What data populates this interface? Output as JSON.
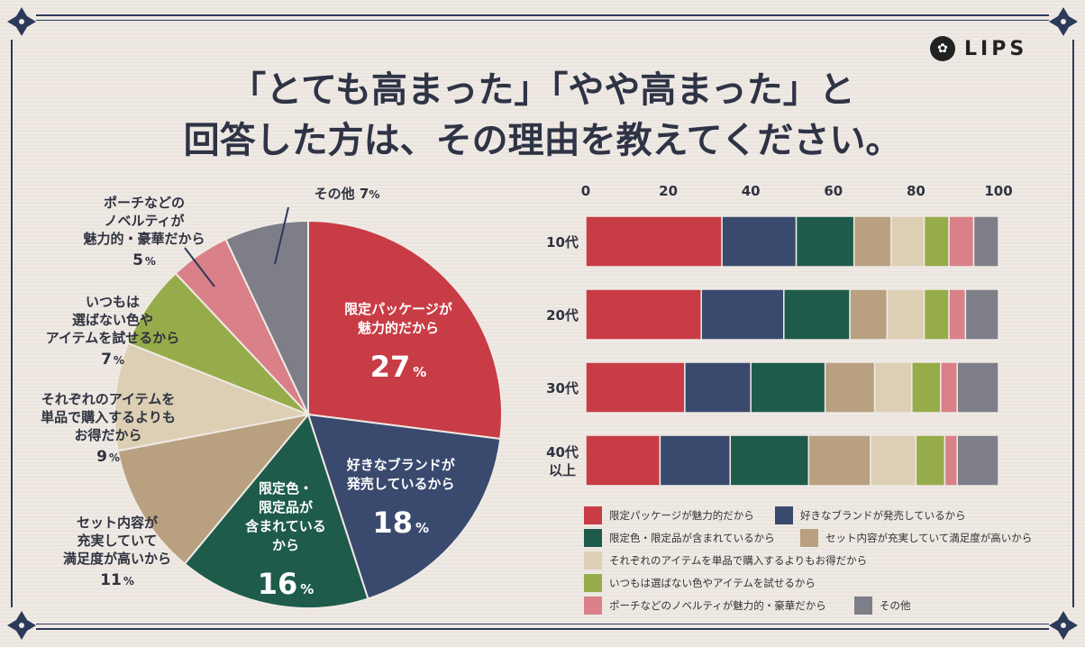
{
  "title": {
    "line1": "「とても高まった」「やや高まった」と",
    "line2": "回答した方は、その理由を教えてください。"
  },
  "logo": {
    "text": "LIPS",
    "icon": "rabbit-logo-icon"
  },
  "colors": {
    "limited_package": "#c83c46",
    "favorite_brand": "#3a4a6e",
    "limited_color": "#1e5b4a",
    "set_contents": "#b8a080",
    "single_items": "#dccfb4",
    "colors_items": "#96ac4a",
    "novelty": "#d98088",
    "other": "#7d7e88",
    "frame": "#2c3a5a"
  },
  "chart_data": [
    {
      "type": "pie",
      "title": "",
      "slices": [
        {
          "key": "limited_package",
          "label": [
            "限定パッケージが",
            "魅力的だから"
          ],
          "value": 27,
          "pct": "27",
          "label_pos": "inside"
        },
        {
          "key": "favorite_brand",
          "label": [
            "好きなブランドが",
            "発売しているから"
          ],
          "value": 18,
          "pct": "18",
          "label_pos": "inside"
        },
        {
          "key": "limited_color",
          "label": [
            "限定色・",
            "限定品が",
            "含まれている",
            "から"
          ],
          "value": 16,
          "pct": "16",
          "label_pos": "inside"
        },
        {
          "key": "set_contents",
          "label": [
            "セット内容が",
            "充実していて",
            "満足度が高いから"
          ],
          "value": 11,
          "pct": "11",
          "label_pos": "outside"
        },
        {
          "key": "single_items",
          "label": [
            "それぞれのアイテムを",
            "単品で購入するよりも",
            "お得だから"
          ],
          "value": 9,
          "pct": "9",
          "label_pos": "outside"
        },
        {
          "key": "colors_items",
          "label": [
            "いつもは",
            "選ばない色や",
            "アイテムを試せるから"
          ],
          "value": 7,
          "pct": "7",
          "label_pos": "outside"
        },
        {
          "key": "novelty",
          "label": [
            "ポーチなどの",
            "ノベルティが",
            "魅力的・豪華だから"
          ],
          "value": 5,
          "pct": "5",
          "label_pos": "outside"
        },
        {
          "key": "other",
          "label": [
            "その他"
          ],
          "value": 7,
          "pct": "7",
          "label_pos": "outside"
        }
      ],
      "pct_suffix": "%"
    },
    {
      "type": "bar",
      "orientation": "horizontal",
      "stacked": true,
      "xlim": [
        0,
        100
      ],
      "xticks": [
        "0",
        "20",
        "40",
        "60",
        "80",
        "100"
      ],
      "categories": [
        [
          "10代"
        ],
        [
          "20代"
        ],
        [
          "30代"
        ],
        [
          "40代",
          "以上"
        ]
      ],
      "series": [
        {
          "key": "limited_package",
          "name": "限定パッケージが魅力的だから",
          "values": [
            33,
            28,
            24,
            18
          ]
        },
        {
          "key": "favorite_brand",
          "name": "好きなブランドが発売しているから",
          "values": [
            18,
            20,
            16,
            17
          ]
        },
        {
          "key": "limited_color",
          "name": "限定色・限定品が含まれているから",
          "values": [
            14,
            16,
            18,
            19
          ]
        },
        {
          "key": "set_contents",
          "name": "セット内容が充実していて満足度が高いから",
          "values": [
            9,
            9,
            12,
            15
          ]
        },
        {
          "key": "single_items",
          "name": "それぞれのアイテムを単品で購入するよりもお得だから",
          "values": [
            8,
            9,
            9,
            11
          ]
        },
        {
          "key": "colors_items",
          "name": "いつもは選ばない色やアイテムを試せるから",
          "values": [
            6,
            6,
            7,
            7
          ]
        },
        {
          "key": "novelty",
          "name": "ポーチなどのノベルティが魅力的・豪華だから",
          "values": [
            6,
            4,
            4,
            3
          ]
        },
        {
          "key": "other",
          "name": "その他",
          "values": [
            6,
            8,
            10,
            10
          ]
        }
      ]
    }
  ]
}
